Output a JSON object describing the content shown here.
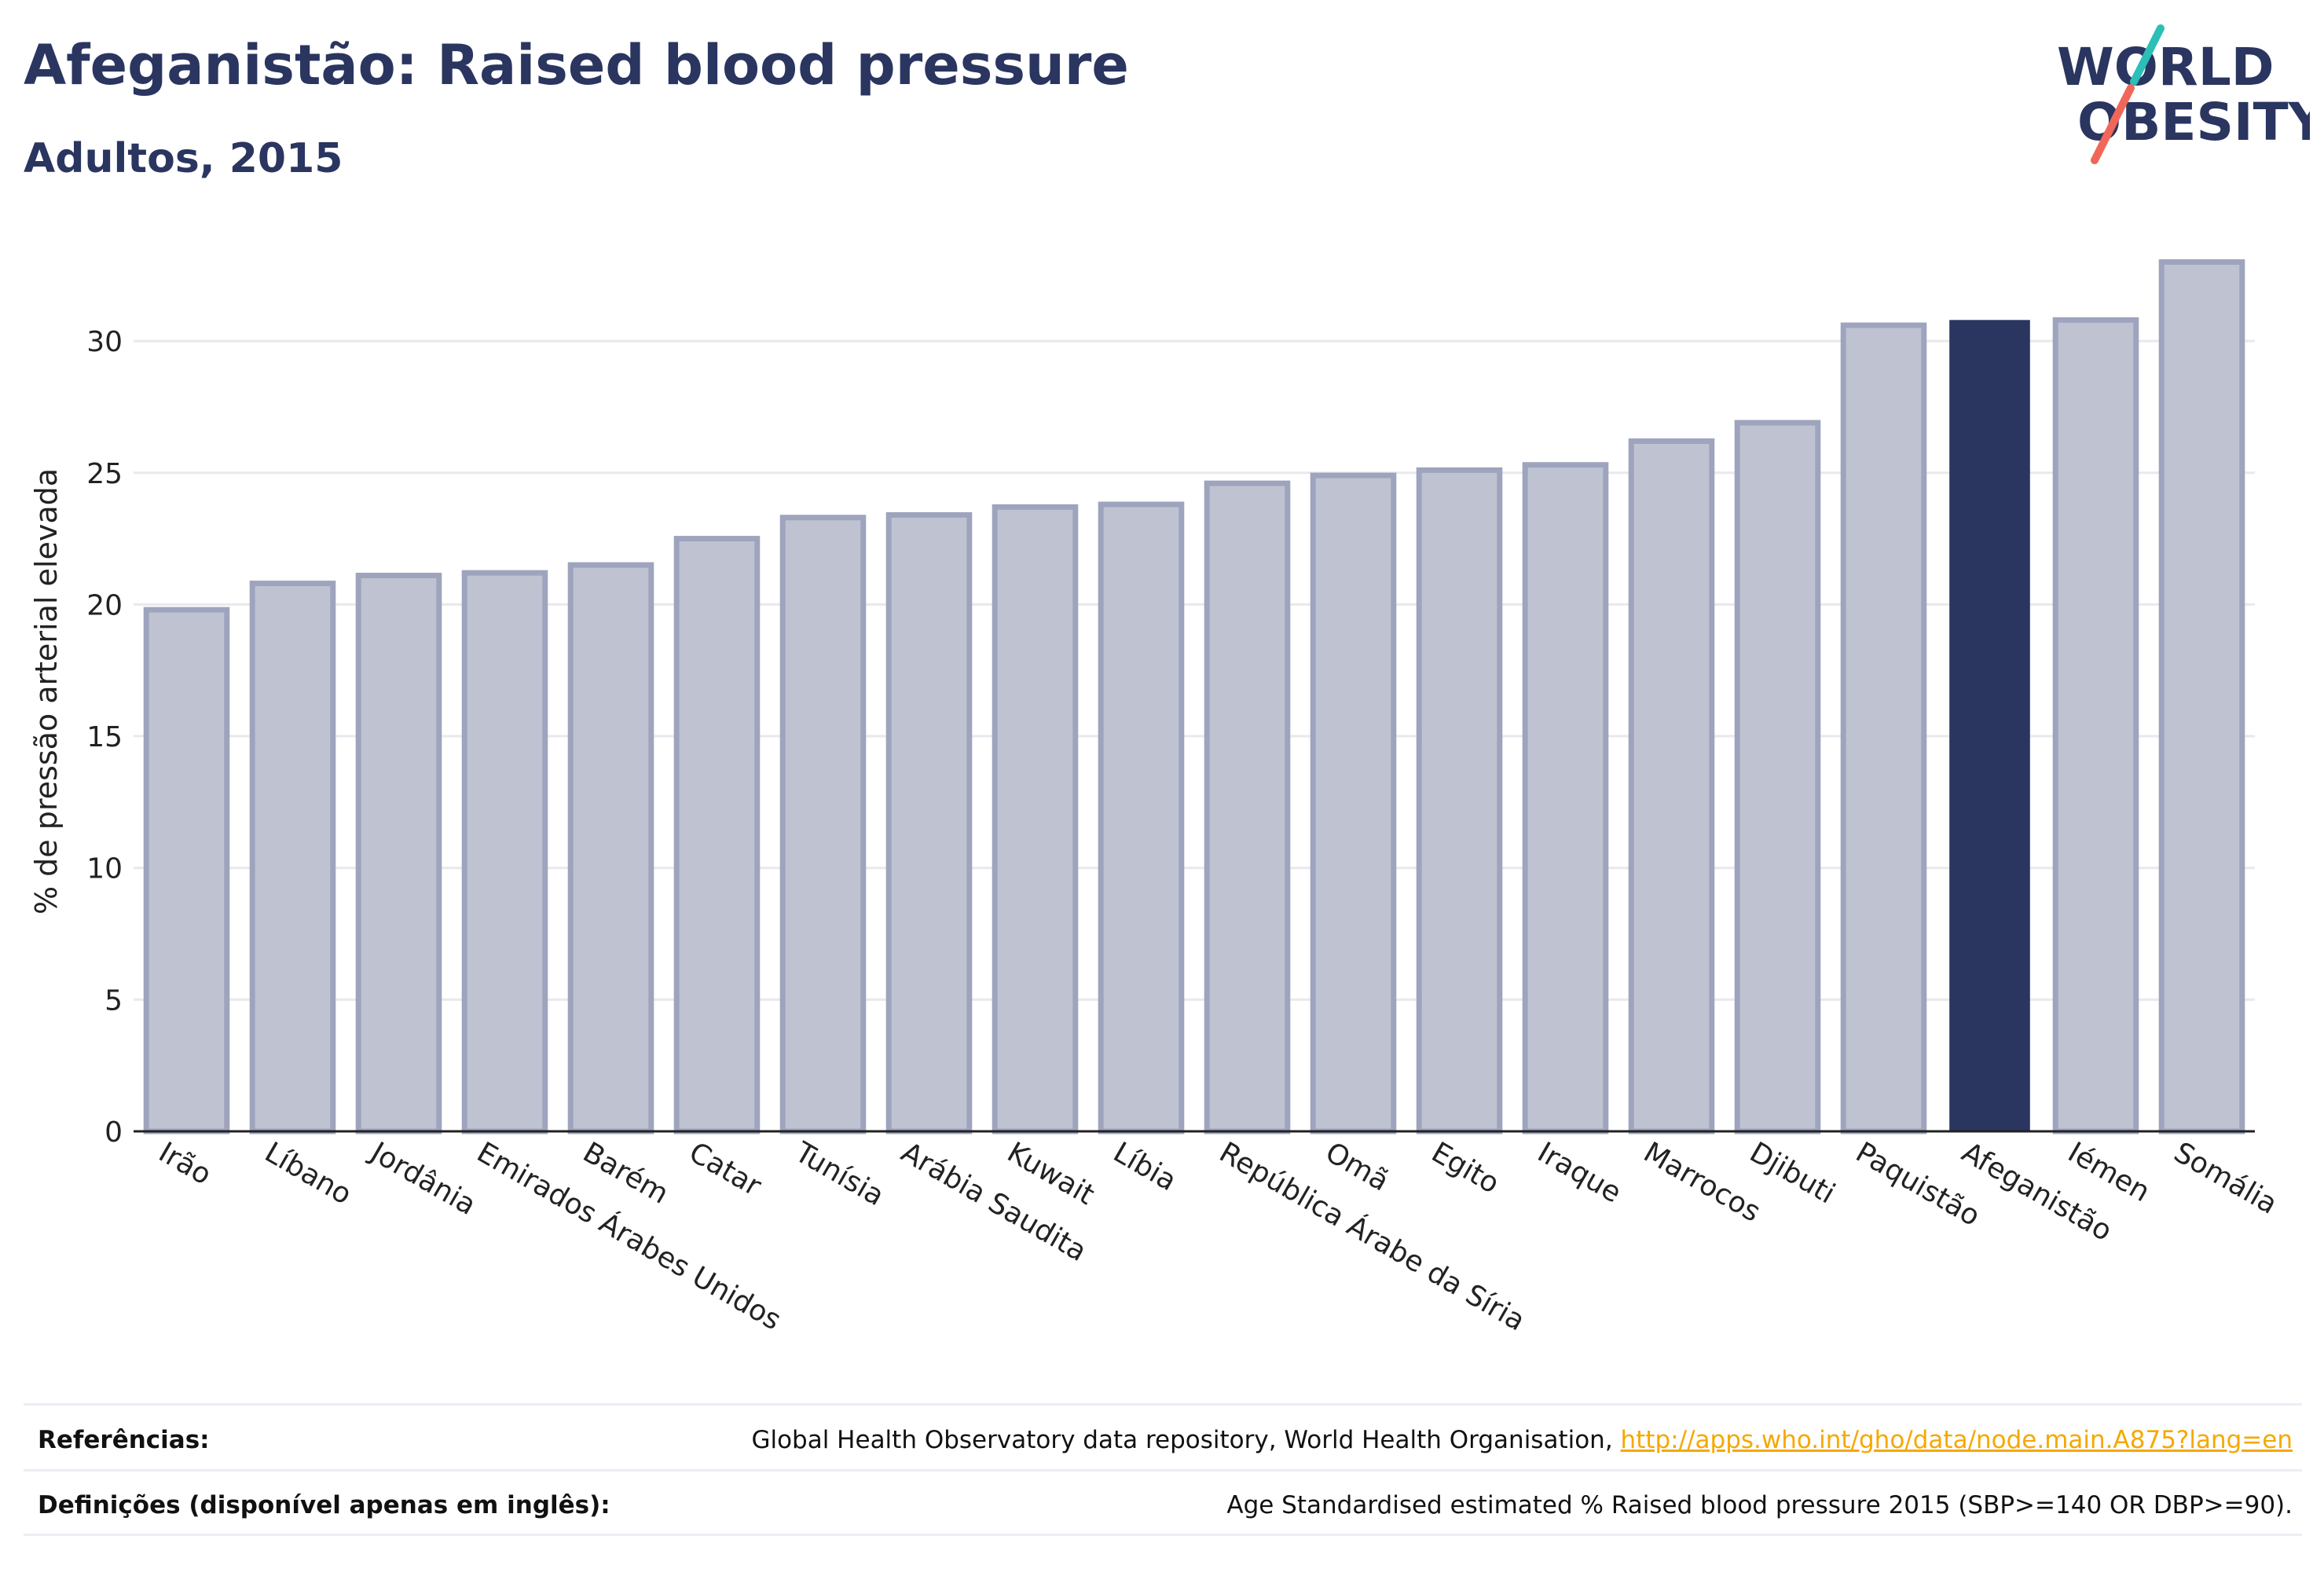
{
  "header": {
    "title": "Afeganistão: Raised blood pressure",
    "subtitle": "Adultos, 2015"
  },
  "logo": {
    "line1": "WORLD",
    "line2": "OBESITY",
    "colors": {
      "text": "#2a3560",
      "slash_teal": "#2bbfb7",
      "slash_red": "#f0675a"
    }
  },
  "colors": {
    "bar": "#bfc3d1",
    "bar_stroke": "#9ea4bd",
    "highlight": "#2a3560",
    "grid": "#e8e8ee",
    "axis": "#222222"
  },
  "chart_data": {
    "type": "bar",
    "ylabel": "% de pressão arterial elevada",
    "ylim": [
      0,
      34
    ],
    "yticks": [
      0,
      5,
      10,
      15,
      20,
      25,
      30
    ],
    "grid": true,
    "highlight": "Afeganistão",
    "categories": [
      "Irão",
      "Líbano",
      "Jordânia",
      "Emirados Árabes Unidos",
      "Barém",
      "Catar",
      "Tunísia",
      "Arábia Saudita",
      "Kuwait",
      "Líbia",
      "República Árabe da Síria",
      "Omã",
      "Egito",
      "Iraque",
      "Marrocos",
      "Djibuti",
      "Paquistão",
      "Afeganistão",
      "Iémen",
      "Somália"
    ],
    "values": [
      19.8,
      20.8,
      21.1,
      21.2,
      21.5,
      22.5,
      23.3,
      23.4,
      23.7,
      23.8,
      24.6,
      24.9,
      25.1,
      25.3,
      26.2,
      26.9,
      30.6,
      30.8,
      30.8,
      33.0
    ]
  },
  "footer": {
    "references_label": "Referências:",
    "references_text": "Global Health Observatory data repository, World Health Organisation, ",
    "references_link": "http://apps.who.int/gho/data/node.main.A875?lang=en",
    "definitions_label": "Definições (disponível apenas em inglês):",
    "definitions_text": "Age Standardised estimated % Raised blood pressure 2015 (SBP>=140 OR DBP>=90)."
  }
}
